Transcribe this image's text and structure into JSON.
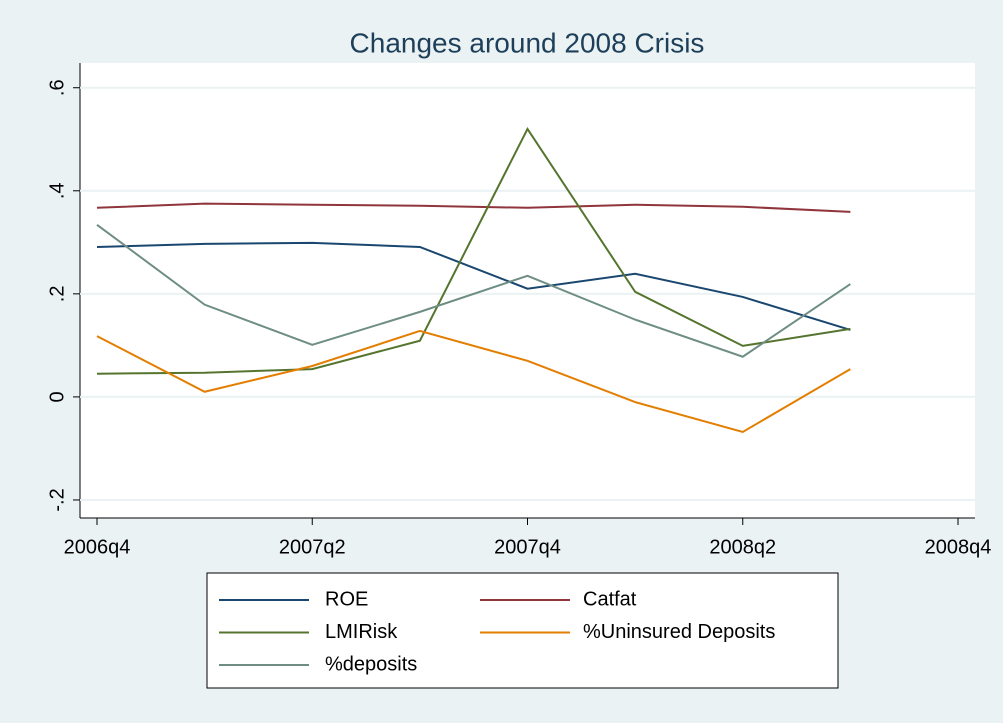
{
  "chart_data": {
    "type": "line",
    "title": "Changes around 2008 Crisis",
    "categories": [
      "2006q4",
      null,
      "2007q2",
      null,
      "2007q4",
      null,
      "2008q2",
      null,
      "2008q4"
    ],
    "series": [
      {
        "name": "ROE",
        "color": "#1a476f",
        "values": [
          0.291,
          0.297,
          0.299,
          0.291,
          0.21,
          0.239,
          0.194,
          0.13,
          null
        ]
      },
      {
        "name": "Catfat",
        "color": "#90353b",
        "values": [
          0.367,
          0.375,
          0.373,
          0.371,
          0.367,
          0.373,
          0.369,
          0.359,
          null
        ]
      },
      {
        "name": "LMIRisk",
        "color": "#55752f",
        "values": [
          0.045,
          0.047,
          0.054,
          0.109,
          0.52,
          0.204,
          0.099,
          0.132,
          null
        ]
      },
      {
        "name": "%Uninsured Deposits",
        "color": "#e37e00",
        "values": [
          0.118,
          0.01,
          0.06,
          0.128,
          0.07,
          -0.01,
          -0.068,
          0.054,
          null
        ]
      },
      {
        "name": "%deposits",
        "color": "#6e8e84",
        "values": [
          0.334,
          0.179,
          0.101,
          0.165,
          0.235,
          0.15,
          0.078,
          0.219,
          null
        ]
      }
    ],
    "ylim": [
      -0.235,
      0.648
    ],
    "yticks": [
      {
        "value": -0.2,
        "label": "-.2"
      },
      0,
      {
        "value": 0.2,
        "label": ".2"
      },
      {
        "value": 0.4,
        "label": ".4"
      },
      {
        "value": 0.6,
        "label": ".6"
      }
    ],
    "grid": true
  }
}
